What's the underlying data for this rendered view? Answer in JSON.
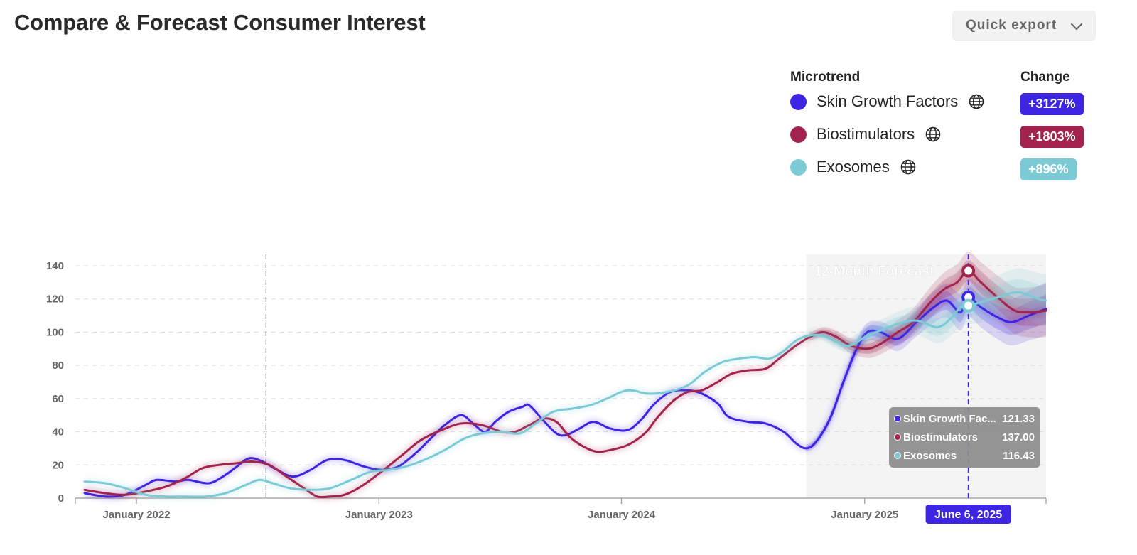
{
  "header": {
    "title": "Compare & Forecast Consumer Interest",
    "export_label": "Quick export"
  },
  "legend": {
    "name_header": "Microtrend",
    "change_header": "Change",
    "items": [
      {
        "name": "Skin Growth Factors",
        "change": "+3127%",
        "color": "#3d25e3"
      },
      {
        "name": "Biostimulators",
        "change": "+1803%",
        "color": "#a2234d"
      },
      {
        "name": "Exosomes",
        "change": "+896%",
        "color": "#7ccad6"
      }
    ]
  },
  "chart_data": {
    "type": "line",
    "x_unit": "date",
    "x_range": [
      "2021-10-01",
      "2025-10-01"
    ],
    "ylim": [
      0,
      140
    ],
    "yticks": [
      0,
      20,
      40,
      60,
      80,
      100,
      120,
      140
    ],
    "xticks": [
      {
        "date": "2022-01-01",
        "label": "January 2022"
      },
      {
        "date": "2023-01-01",
        "label": "January 2023"
      },
      {
        "date": "2024-01-01",
        "label": "January 2024"
      },
      {
        "date": "2025-01-01",
        "label": "January 2025"
      }
    ],
    "grid": "horizontal dashed",
    "forecast": {
      "label": "12-Month Forecast",
      "start": "2024-10-05",
      "end": "2025-10-01"
    },
    "marker_line_date": "2022-07-15",
    "hover": {
      "date": "2025-06-06",
      "date_label": "June 6, 2025",
      "rows": [
        {
          "name": "Skin Growth Fac...",
          "value": "121.33"
        },
        {
          "name": "Biostimulators",
          "value": "137.00"
        },
        {
          "name": "Exosomes",
          "value": "116.43"
        }
      ]
    },
    "series": [
      {
        "name": "Skin Growth Factors",
        "color": "#3d25e3",
        "points": [
          [
            "2021-10-15",
            3
          ],
          [
            "2021-11-15",
            1
          ],
          [
            "2021-12-15",
            2
          ],
          [
            "2022-01-15",
            8
          ],
          [
            "2022-02-01",
            11
          ],
          [
            "2022-03-01",
            10
          ],
          [
            "2022-03-20",
            11
          ],
          [
            "2022-04-20",
            9
          ],
          [
            "2022-05-15",
            14
          ],
          [
            "2022-06-01",
            19
          ],
          [
            "2022-06-20",
            24
          ],
          [
            "2022-07-10",
            22
          ],
          [
            "2022-08-01",
            17
          ],
          [
            "2022-08-25",
            13
          ],
          [
            "2022-09-20",
            17
          ],
          [
            "2022-10-15",
            23
          ],
          [
            "2022-11-10",
            23
          ],
          [
            "2022-12-10",
            19
          ],
          [
            "2023-01-05",
            17
          ],
          [
            "2023-01-30",
            19
          ],
          [
            "2023-02-25",
            27
          ],
          [
            "2023-03-20",
            36
          ],
          [
            "2023-04-10",
            44
          ],
          [
            "2023-05-05",
            50
          ],
          [
            "2023-05-25",
            44
          ],
          [
            "2023-06-10",
            40
          ],
          [
            "2023-06-25",
            46
          ],
          [
            "2023-07-15",
            52
          ],
          [
            "2023-08-05",
            55
          ],
          [
            "2023-08-15",
            56
          ],
          [
            "2023-09-05",
            47
          ],
          [
            "2023-09-25",
            39
          ],
          [
            "2023-10-10",
            38
          ],
          [
            "2023-10-30",
            42
          ],
          [
            "2023-11-20",
            46
          ],
          [
            "2023-12-15",
            42
          ],
          [
            "2024-01-10",
            41
          ],
          [
            "2024-01-30",
            47
          ],
          [
            "2024-02-20",
            57
          ],
          [
            "2024-03-15",
            64
          ],
          [
            "2024-04-10",
            65
          ],
          [
            "2024-05-01",
            63
          ],
          [
            "2024-05-25",
            57
          ],
          [
            "2024-06-10",
            49
          ],
          [
            "2024-07-10",
            46
          ],
          [
            "2024-08-05",
            45
          ],
          [
            "2024-09-01",
            40
          ],
          [
            "2024-09-20",
            33
          ],
          [
            "2024-10-05",
            30
          ],
          [
            "2024-10-20",
            34
          ],
          [
            "2024-11-10",
            48
          ],
          [
            "2024-11-30",
            70
          ],
          [
            "2024-12-20",
            90
          ],
          [
            "2025-01-05",
            100
          ],
          [
            "2025-01-25",
            100
          ],
          [
            "2025-02-20",
            96
          ],
          [
            "2025-03-20",
            106
          ],
          [
            "2025-04-15",
            115
          ],
          [
            "2025-05-05",
            119
          ],
          [
            "2025-05-25",
            112
          ],
          [
            "2025-06-06",
            121
          ],
          [
            "2025-06-25",
            115
          ],
          [
            "2025-07-20",
            109
          ],
          [
            "2025-08-10",
            106
          ],
          [
            "2025-09-05",
            110
          ],
          [
            "2025-10-01",
            114
          ]
        ]
      },
      {
        "name": "Biostimulators",
        "color": "#a2234d",
        "points": [
          [
            "2021-10-15",
            5
          ],
          [
            "2021-11-15",
            3
          ],
          [
            "2021-12-15",
            2
          ],
          [
            "2022-01-15",
            4
          ],
          [
            "2022-02-15",
            7
          ],
          [
            "2022-03-15",
            12
          ],
          [
            "2022-04-10",
            18
          ],
          [
            "2022-05-05",
            20
          ],
          [
            "2022-05-30",
            21
          ],
          [
            "2022-06-25",
            22
          ],
          [
            "2022-07-20",
            20
          ],
          [
            "2022-08-15",
            13
          ],
          [
            "2022-09-10",
            6
          ],
          [
            "2022-09-30",
            1
          ],
          [
            "2022-10-20",
            1
          ],
          [
            "2022-11-10",
            2
          ],
          [
            "2022-12-05",
            7
          ],
          [
            "2023-01-05",
            16
          ],
          [
            "2023-02-05",
            26
          ],
          [
            "2023-03-05",
            35
          ],
          [
            "2023-04-05",
            41
          ],
          [
            "2023-05-05",
            45
          ],
          [
            "2023-06-05",
            44
          ],
          [
            "2023-07-05",
            40
          ],
          [
            "2023-07-25",
            40
          ],
          [
            "2023-08-15",
            44
          ],
          [
            "2023-09-05",
            48
          ],
          [
            "2023-09-25",
            46
          ],
          [
            "2023-10-15",
            37
          ],
          [
            "2023-11-05",
            31
          ],
          [
            "2023-11-25",
            28
          ],
          [
            "2023-12-15",
            29
          ],
          [
            "2024-01-10",
            32
          ],
          [
            "2024-02-05",
            39
          ],
          [
            "2024-02-25",
            49
          ],
          [
            "2024-03-20",
            59
          ],
          [
            "2024-04-10",
            64
          ],
          [
            "2024-05-01",
            65
          ],
          [
            "2024-05-25",
            70
          ],
          [
            "2024-06-15",
            75
          ],
          [
            "2024-07-10",
            77
          ],
          [
            "2024-08-05",
            78
          ],
          [
            "2024-08-25",
            84
          ],
          [
            "2024-09-20",
            92
          ],
          [
            "2024-10-10",
            97
          ],
          [
            "2024-10-30",
            100
          ],
          [
            "2024-11-20",
            97
          ],
          [
            "2024-12-10",
            92
          ],
          [
            "2025-01-05",
            90
          ],
          [
            "2025-01-25",
            93
          ],
          [
            "2025-02-20",
            100
          ],
          [
            "2025-03-15",
            106
          ],
          [
            "2025-04-10",
            118
          ],
          [
            "2025-05-01",
            126
          ],
          [
            "2025-05-20",
            130
          ],
          [
            "2025-06-06",
            137
          ],
          [
            "2025-06-25",
            130
          ],
          [
            "2025-07-20",
            121
          ],
          [
            "2025-08-15",
            113
          ],
          [
            "2025-09-10",
            112
          ],
          [
            "2025-10-01",
            113
          ]
        ]
      },
      {
        "name": "Exosomes",
        "color": "#7ccad6",
        "points": [
          [
            "2021-10-15",
            10
          ],
          [
            "2021-11-15",
            9
          ],
          [
            "2021-12-15",
            6
          ],
          [
            "2022-01-15",
            2
          ],
          [
            "2022-02-15",
            1
          ],
          [
            "2022-03-15",
            1
          ],
          [
            "2022-04-15",
            1
          ],
          [
            "2022-05-15",
            3
          ],
          [
            "2022-06-15",
            8
          ],
          [
            "2022-07-05",
            11
          ],
          [
            "2022-07-25",
            9
          ],
          [
            "2022-08-20",
            6
          ],
          [
            "2022-09-20",
            5
          ],
          [
            "2022-10-20",
            6
          ],
          [
            "2022-11-20",
            11
          ],
          [
            "2022-12-20",
            16
          ],
          [
            "2023-01-15",
            17
          ],
          [
            "2023-02-10",
            19
          ],
          [
            "2023-03-10",
            23
          ],
          [
            "2023-04-10",
            29
          ],
          [
            "2023-05-10",
            36
          ],
          [
            "2023-06-05",
            39
          ],
          [
            "2023-07-05",
            40
          ],
          [
            "2023-08-01",
            39
          ],
          [
            "2023-08-25",
            45
          ],
          [
            "2023-09-20",
            52
          ],
          [
            "2023-10-20",
            54
          ],
          [
            "2023-11-15",
            56
          ],
          [
            "2023-12-10",
            60
          ],
          [
            "2024-01-10",
            65
          ],
          [
            "2024-02-10",
            63
          ],
          [
            "2024-03-10",
            64
          ],
          [
            "2024-04-10",
            68
          ],
          [
            "2024-05-05",
            76
          ],
          [
            "2024-06-01",
            82
          ],
          [
            "2024-06-25",
            84
          ],
          [
            "2024-07-20",
            85
          ],
          [
            "2024-08-10",
            84
          ],
          [
            "2024-08-30",
            88
          ],
          [
            "2024-09-20",
            95
          ],
          [
            "2024-10-10",
            98
          ],
          [
            "2024-10-30",
            98
          ],
          [
            "2024-11-20",
            94
          ],
          [
            "2024-12-10",
            92
          ],
          [
            "2025-01-05",
            98
          ],
          [
            "2025-01-25",
            101
          ],
          [
            "2025-02-20",
            105
          ],
          [
            "2025-03-20",
            107
          ],
          [
            "2025-04-20",
            103
          ],
          [
            "2025-05-10",
            108
          ],
          [
            "2025-05-25",
            115
          ],
          [
            "2025-06-06",
            116
          ],
          [
            "2025-06-25",
            118
          ],
          [
            "2025-07-20",
            121
          ],
          [
            "2025-08-20",
            124
          ],
          [
            "2025-09-20",
            120
          ],
          [
            "2025-10-01",
            119
          ]
        ]
      }
    ]
  }
}
